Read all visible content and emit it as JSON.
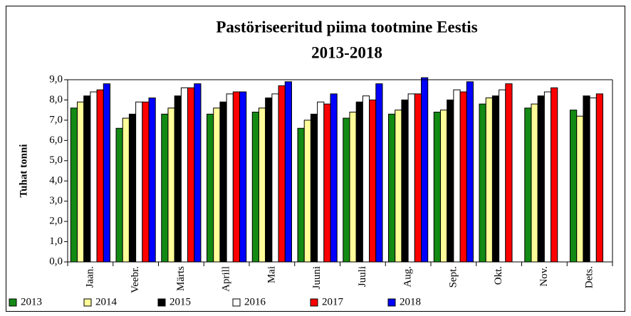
{
  "chart_data": {
    "type": "bar",
    "title": "Pastöriseeritud piima tootmine Eestis",
    "subtitle": "2013-2018",
    "y_label": "Tuhat tonni",
    "categories": [
      "Jaan.",
      "Veebr.",
      "Märts",
      "Aprill",
      "Mai",
      "Juuni",
      "Juuli",
      "Aug.",
      "Sept.",
      "Okt.",
      "Nov.",
      "Dets."
    ],
    "series": [
      {
        "name": "2013",
        "color": "#138a13",
        "values": [
          7.6,
          6.6,
          7.3,
          7.3,
          7.4,
          6.6,
          7.1,
          7.3,
          7.4,
          7.8,
          7.6,
          7.5
        ]
      },
      {
        "name": "2014",
        "color": "#ffff99",
        "values": [
          7.9,
          7.1,
          7.6,
          7.6,
          7.6,
          7.0,
          7.4,
          7.5,
          7.5,
          8.1,
          7.8,
          7.2
        ]
      },
      {
        "name": "2015",
        "color": "#000000",
        "values": [
          8.2,
          7.3,
          8.2,
          7.9,
          8.1,
          7.3,
          7.9,
          8.0,
          8.0,
          8.2,
          8.2,
          8.2
        ]
      },
      {
        "name": "2016",
        "color": "#ffffff",
        "values": [
          8.4,
          7.9,
          8.6,
          8.3,
          8.3,
          7.9,
          8.2,
          8.3,
          8.5,
          8.5,
          8.4,
          8.1
        ]
      },
      {
        "name": "2017",
        "color": "#ff0000",
        "values": [
          8.5,
          7.9,
          8.6,
          8.4,
          8.7,
          7.8,
          8.0,
          8.3,
          8.4,
          8.8,
          8.6,
          8.3
        ]
      },
      {
        "name": "2018",
        "color": "#0000ff",
        "values": [
          8.8,
          8.1,
          8.8,
          8.4,
          8.9,
          8.3,
          8.8,
          9.1,
          8.9,
          null,
          null,
          null
        ]
      }
    ],
    "ylim": [
      0,
      9
    ],
    "yticks": [
      {
        "value": 0,
        "label": "0,0"
      },
      {
        "value": 1,
        "label": "1,0"
      },
      {
        "value": 2,
        "label": "2,0"
      },
      {
        "value": 3,
        "label": "3,0"
      },
      {
        "value": 4,
        "label": "4,0"
      },
      {
        "value": 5,
        "label": "5,0"
      },
      {
        "value": 6,
        "label": "6,0"
      },
      {
        "value": 7,
        "label": "7,0"
      },
      {
        "value": 8,
        "label": "8,0"
      },
      {
        "value": 9,
        "label": "9,0"
      }
    ],
    "grid": false,
    "legend": "bottom"
  }
}
